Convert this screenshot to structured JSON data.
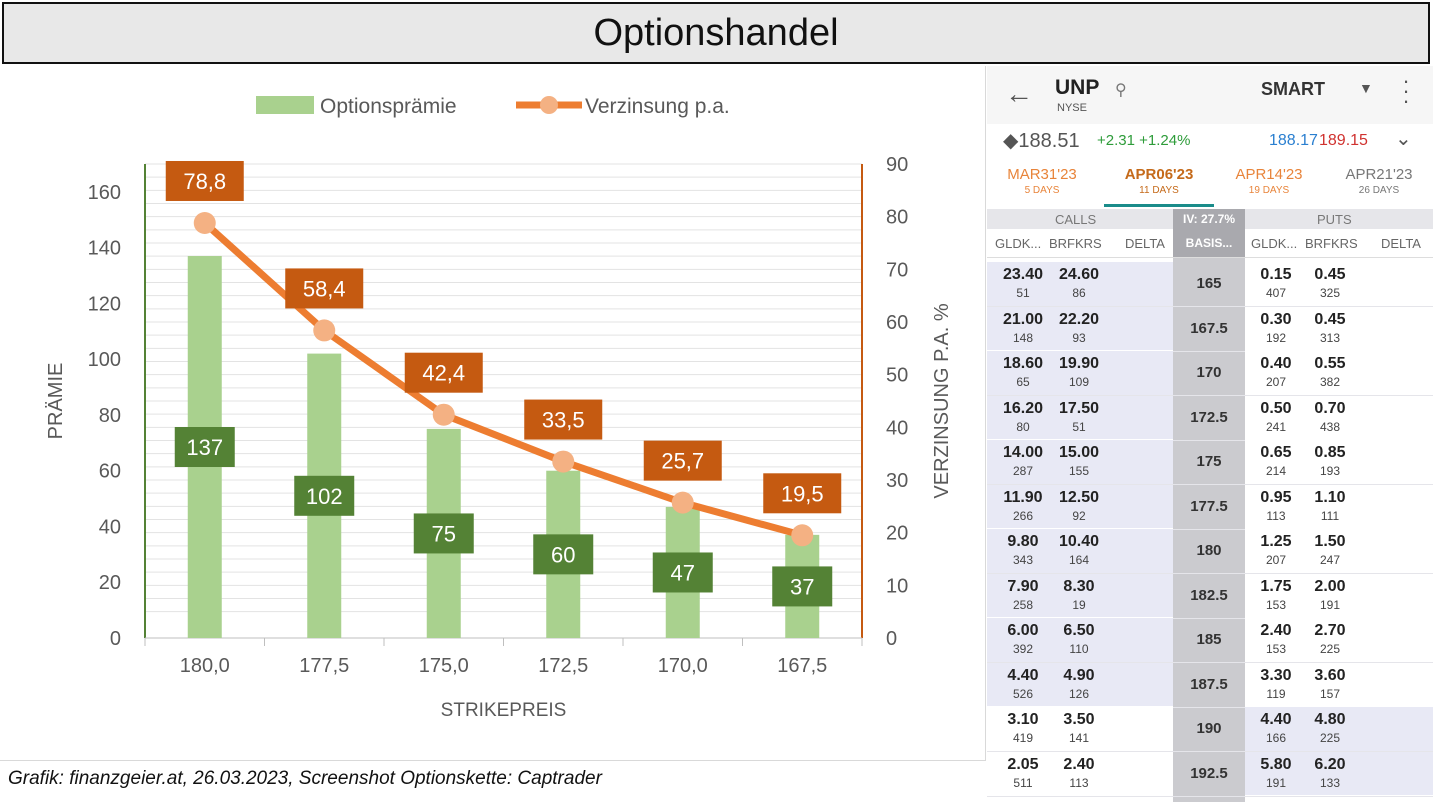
{
  "title": "Optionshandel",
  "caption": "Grafik: finanzgeier.at, 26.03.2023, Screenshot Optionskette: Captrader",
  "chart_data": {
    "type": "bar+line",
    "categories": [
      "180,0",
      "177,5",
      "175,0",
      "172,5",
      "170,0",
      "167,5"
    ],
    "series": [
      {
        "name": "Optionsprämie",
        "type": "bar",
        "axis": "left",
        "values": [
          137,
          102,
          75,
          60,
          47,
          37
        ],
        "labels": [
          "137",
          "102",
          "75",
          "60",
          "47",
          "37"
        ],
        "color": "#a9d18e",
        "label_bg": "#548235"
      },
      {
        "name": "Verzinsung p.a.",
        "type": "line",
        "axis": "right",
        "values": [
          78.8,
          58.4,
          42.4,
          33.5,
          25.7,
          19.5
        ],
        "labels": [
          "78,8",
          "58,4",
          "42,4",
          "33,5",
          "25,7",
          "19,5"
        ],
        "color": "#ed7d31",
        "marker": "#f4b183",
        "label_bg": "#c55a11"
      }
    ],
    "xlabel": "STRIKEPREIS",
    "ylabel": "PRÄMIE",
    "y2label": "VERZINSUNG P.A. %",
    "ylim": [
      0,
      170
    ],
    "y2lim": [
      0,
      90
    ],
    "yticks": [
      0,
      20,
      40,
      60,
      80,
      100,
      120,
      140,
      160
    ],
    "y2ticks": [
      0,
      10,
      20,
      30,
      40,
      50,
      60,
      70,
      80,
      90
    ],
    "grid": true,
    "legend_position": "top"
  },
  "phone": {
    "symbol": "UNP",
    "exchange": "NYSE",
    "route": "SMART",
    "last": "188.51",
    "change": "+2.31 +1.24%",
    "bid": "188.17",
    "ask": "189.15",
    "expiries": [
      {
        "date": "MAR31'23",
        "days": "5 DAYS",
        "color": "#e8843a"
      },
      {
        "date": "APR06'23",
        "days": "11 DAYS",
        "color": "#c56a1a"
      },
      {
        "date": "APR14'23",
        "days": "19 DAYS",
        "color": "#e8843a"
      },
      {
        "date": "APR21'23",
        "days": "26 DAYS",
        "color": "#777777"
      }
    ],
    "calls_label": "CALLS",
    "iv_label": "IV: 27.7%",
    "puts_label": "PUTS",
    "col_bid": "GLDK...",
    "col_ask": "BRFKRS",
    "col_delta": "DELTA",
    "col_basis": "BASIS...",
    "rows": [
      {
        "strike": "165",
        "cb": "23.40",
        "cbs": "51",
        "ca": "24.60",
        "cas": "86",
        "pb": "0.15",
        "pbs": "407",
        "pa": "0.45",
        "pas": "325"
      },
      {
        "strike": "167.5",
        "cb": "21.00",
        "cbs": "148",
        "ca": "22.20",
        "cas": "93",
        "pb": "0.30",
        "pbs": "192",
        "pa": "0.45",
        "pas": "313"
      },
      {
        "strike": "170",
        "cb": "18.60",
        "cbs": "65",
        "ca": "19.90",
        "cas": "109",
        "pb": "0.40",
        "pbs": "207",
        "pa": "0.55",
        "pas": "382"
      },
      {
        "strike": "172.5",
        "cb": "16.20",
        "cbs": "80",
        "ca": "17.50",
        "cas": "51",
        "pb": "0.50",
        "pbs": "241",
        "pa": "0.70",
        "pas": "438"
      },
      {
        "strike": "175",
        "cb": "14.00",
        "cbs": "287",
        "ca": "15.00",
        "cas": "155",
        "pb": "0.65",
        "pbs": "214",
        "pa": "0.85",
        "pas": "193"
      },
      {
        "strike": "177.5",
        "cb": "11.90",
        "cbs": "266",
        "ca": "12.50",
        "cas": "92",
        "pb": "0.95",
        "pbs": "113",
        "pa": "1.10",
        "pas": "111"
      },
      {
        "strike": "180",
        "cb": "9.80",
        "cbs": "343",
        "ca": "10.40",
        "cas": "164",
        "pb": "1.25",
        "pbs": "207",
        "pa": "1.50",
        "pas": "247"
      },
      {
        "strike": "182.5",
        "cb": "7.90",
        "cbs": "258",
        "ca": "8.30",
        "cas": "19",
        "pb": "1.75",
        "pbs": "153",
        "pa": "2.00",
        "pas": "191"
      },
      {
        "strike": "185",
        "cb": "6.00",
        "cbs": "392",
        "ca": "6.50",
        "cas": "110",
        "pb": "2.40",
        "pbs": "153",
        "pa": "2.70",
        "pas": "225"
      },
      {
        "strike": "187.5",
        "cb": "4.40",
        "cbs": "526",
        "ca": "4.90",
        "cas": "126",
        "pb": "3.30",
        "pbs": "119",
        "pa": "3.60",
        "pas": "157"
      },
      {
        "strike": "190",
        "cb": "3.10",
        "cbs": "419",
        "ca": "3.50",
        "cas": "141",
        "pb": "4.40",
        "pbs": "166",
        "pa": "4.80",
        "pas": "225"
      },
      {
        "strike": "192.5",
        "cb": "2.05",
        "cbs": "511",
        "ca": "2.40",
        "cas": "113",
        "pb": "5.80",
        "pbs": "191",
        "pa": "6.20",
        "pas": "133"
      }
    ]
  }
}
